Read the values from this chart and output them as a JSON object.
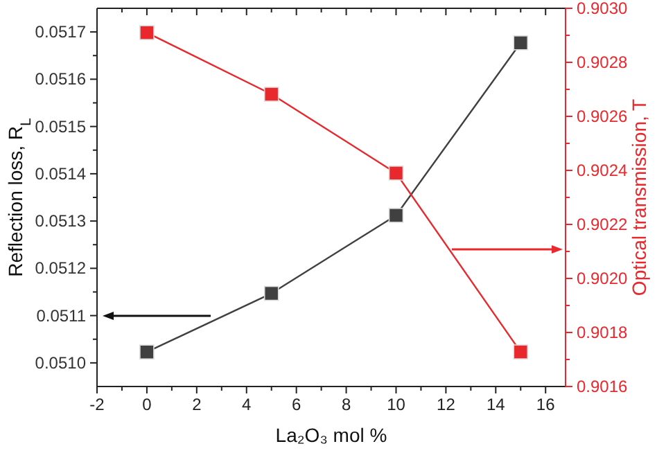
{
  "chart_data": {
    "type": "line",
    "xlabel": "La₂O₃ mol %",
    "ylabel": "Reflection loss, R$_{L}$",
    "y2label": "Optical transmission, T",
    "x": [
      0,
      5,
      10,
      15
    ],
    "xlim": [
      -2,
      16.8
    ],
    "xticks": [
      -2,
      0,
      2,
      4,
      6,
      8,
      10,
      12,
      14,
      16
    ],
    "ylim": [
      0.05095,
      0.05175
    ],
    "yticks": [
      {
        "value": 0.051,
        "label": "0.0510"
      },
      0.0511,
      0.0512,
      0.0513,
      0.0514,
      0.0515,
      0.0516,
      0.0517
    ],
    "y2lim": [
      0.9016,
      0.903
    ],
    "y2ticks": [
      0.9016,
      0.9018,
      {
        "value": 0.902,
        "label": "0.9020"
      },
      0.9022,
      0.9024,
      0.9026,
      0.9028,
      {
        "value": 0.903,
        "label": "0.9030"
      }
    ],
    "marker": "square",
    "line_style": "solid",
    "series": [
      {
        "color": "#404040",
        "values": [
          0.051023,
          0.051147,
          0.051312,
          0.051677
        ]
      },
      {
        "color": "#e8282c",
        "axis": "y2",
        "values": [
          0.90291,
          0.902682,
          0.90239,
          0.901728
        ]
      }
    ]
  }
}
